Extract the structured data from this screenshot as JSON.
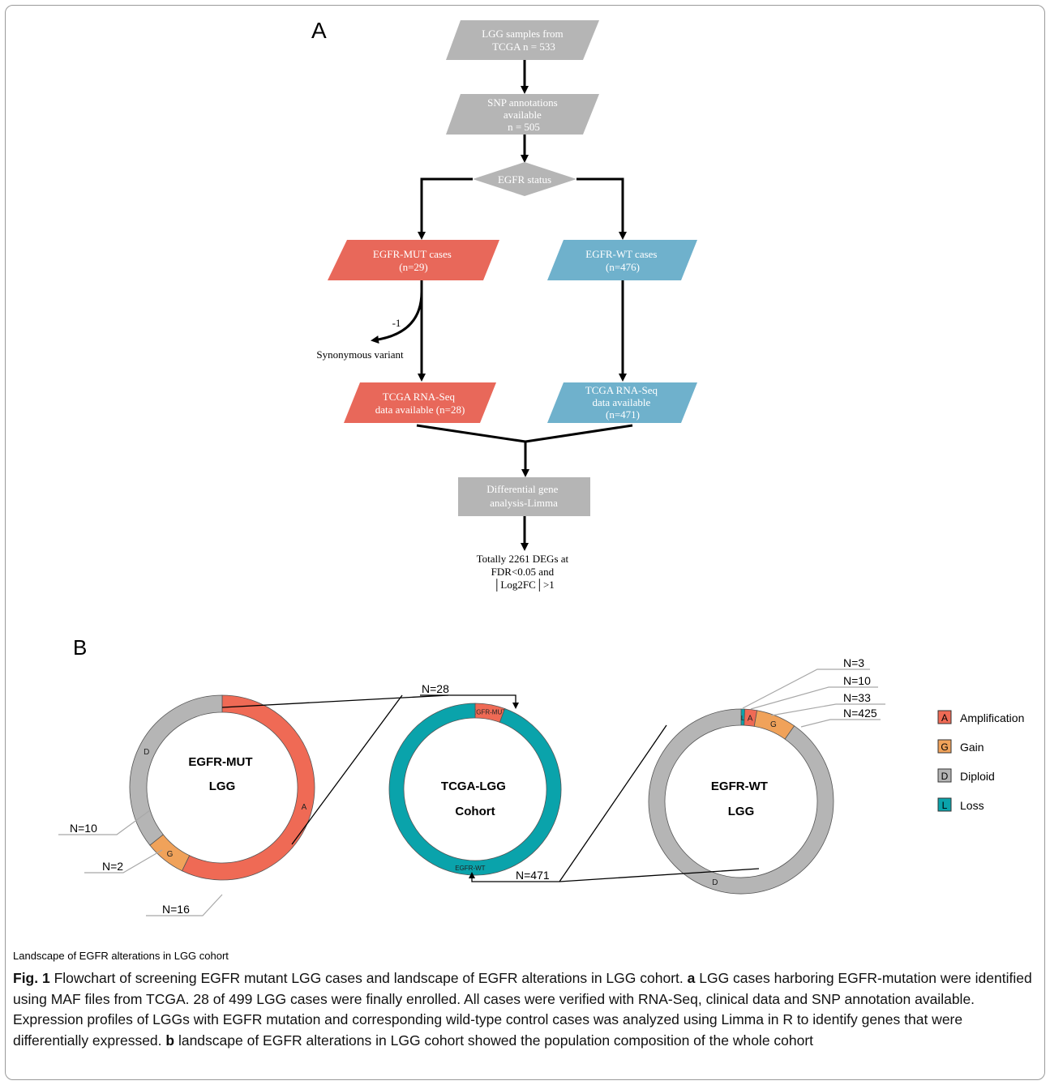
{
  "panel_a_label": "A",
  "panel_b_label": "B",
  "flow": {
    "n1": [
      "LGG samples from",
      "TCGA n = 533"
    ],
    "n2": [
      "SNP annotations",
      "available",
      "n = 505"
    ],
    "decision": "EGFR status",
    "mut": [
      "EGFR-MUT cases",
      "(n=29)"
    ],
    "wt": [
      "EGFR-WT cases",
      "(n=476)"
    ],
    "minus": "-1",
    "syn": "Synonymous variant",
    "mut_rna": [
      "TCGA RNA-Seq",
      "data available (n=28)"
    ],
    "wt_rna": [
      "TCGA RNA-Seq",
      "data available",
      "(n=471)"
    ],
    "dga": [
      "Differential gene",
      "analysis-Limma"
    ],
    "result": [
      "Totally 2261 DEGs at",
      "FDR<0.05 and",
      "│Log2FC│>1"
    ]
  },
  "donuts": {
    "mut": {
      "title": [
        "EGFR-MUT",
        "LGG"
      ],
      "slices": [
        {
          "code": "A",
          "value": 16
        },
        {
          "code": "G",
          "value": 2
        },
        {
          "code": "D",
          "value": 10
        }
      ]
    },
    "cohort": {
      "title": [
        "TCGA-LGG",
        "Cohort"
      ],
      "slices": [
        {
          "label": "EGFR-MUT",
          "value": 28
        },
        {
          "label": "EGFR-WT",
          "value": 471
        }
      ]
    },
    "wt": {
      "title": [
        "EGFR-WT",
        "LGG"
      ],
      "slices": [
        {
          "code": "L",
          "value": 3
        },
        {
          "code": "A",
          "value": 10
        },
        {
          "code": "G",
          "value": 33
        },
        {
          "code": "D",
          "value": 425
        }
      ]
    }
  },
  "callouts": {
    "mut_n10": "N=10",
    "mut_n2": "N=2",
    "mut_n16": "N=16",
    "n28": "N=28",
    "n471": "N=471",
    "wt_n3": "N=3",
    "wt_n10": "N=10",
    "wt_n33": "N=33",
    "wt_n425": "N=425"
  },
  "legend": [
    {
      "code": "A",
      "label": "Amplification",
      "color": "#ef6a55"
    },
    {
      "code": "G",
      "label": "Gain",
      "color": "#f0a25a"
    },
    {
      "code": "D",
      "label": "Diploid",
      "color": "#b4b4b4"
    },
    {
      "code": "L",
      "label": "Loss",
      "color": "#0aa3ab"
    }
  ],
  "colors": {
    "gray": "#b5b5b5",
    "red": "#e8685a",
    "blue": "#6fb1cc",
    "teal": "#0aa3ab",
    "orange": "#f0a25a",
    "amp": "#ef6a55"
  },
  "landscape_label": "Landscape of EGFR alterations in LGG cohort",
  "caption": {
    "fig": "Fig. 1",
    "text1": " Flowchart of screening EGFR mutant LGG cases and landscape of EGFR alterations in LGG cohort. ",
    "a": "a",
    "text2": " LGG cases harboring EGFR-mutation were identified using MAF files from TCGA. 28 of 499 LGG cases were finally enrolled. All cases were verified with RNA-Seq, clinical data and SNP annotation available. Expression profiles of LGGs with EGFR mutation and corresponding wild-type control cases was analyzed using Limma in R to identify genes that were differentially expressed. ",
    "b": "b",
    "text3": " landscape of EGFR alterations in LGG cohort showed the population composition of the whole cohort"
  }
}
